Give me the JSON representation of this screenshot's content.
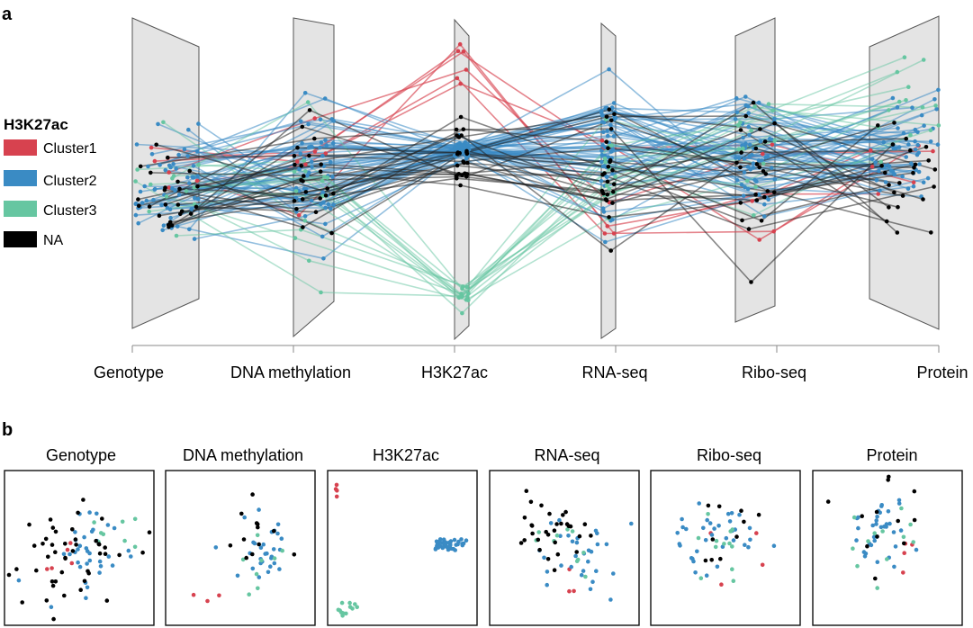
{
  "panel_labels": {
    "a": "a",
    "b": "b"
  },
  "legend": {
    "title": "H3K27ac",
    "items": [
      {
        "label": "Cluster1",
        "color": "#d7424f"
      },
      {
        "label": "Cluster2",
        "color": "#3a8bc4"
      },
      {
        "label": "Cluster3",
        "color": "#66c6a1"
      },
      {
        "label": "NA",
        "color": "#000000"
      }
    ]
  },
  "chart_data": [
    {
      "type": "parallel-coordinates",
      "axes": [
        "Genotype",
        "DNA methylation",
        "H3K27ac",
        "RNA-seq",
        "Ribo-seq",
        "Protein"
      ],
      "color_by": "H3K27ac",
      "groups": [
        "Cluster1",
        "Cluster2",
        "Cluster3",
        "NA"
      ],
      "group_sizes_estimated": {
        "Cluster1": 6,
        "Cluster2": 52,
        "Cluster3": 14,
        "NA": 24
      },
      "notes": "Each line is one sample; values on each axis are 1-D embedding coordinates of that data type (no numeric ticks printed)."
    },
    {
      "type": "scatter",
      "panels": [
        "Genotype",
        "DNA methylation",
        "H3K27ac",
        "RNA-seq",
        "Ribo-seq",
        "Protein"
      ],
      "color_by": "H3K27ac",
      "groups": [
        "Cluster1",
        "Cluster2",
        "Cluster3",
        "NA"
      ],
      "notes": "2-D embeddings of samples per data type; no axes or ticks printed."
    }
  ]
}
